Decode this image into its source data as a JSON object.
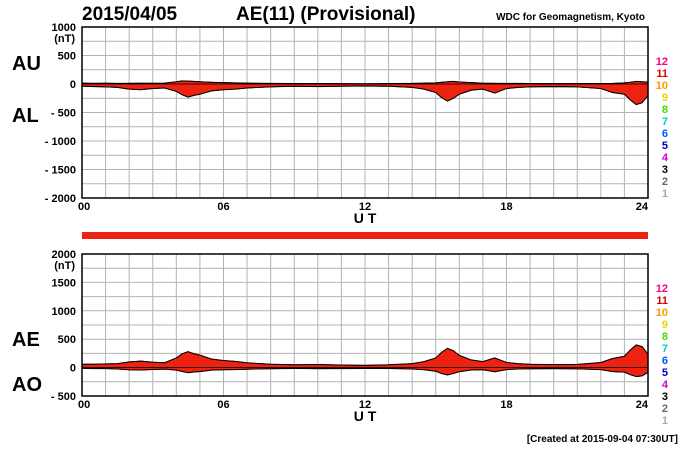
{
  "header": {
    "date": "2015/04/05",
    "title": "AE(11) (Provisional)",
    "source": "WDC for Geomagnetism, Kyoto"
  },
  "footer": {
    "created": "[Created at 2015-09-04 07:30UT]"
  },
  "colors": {
    "fill": "#ee2211",
    "grid": "#b4b4b4",
    "bar": "#ee2211",
    "station_colors": [
      "#ff0088",
      "#dd0000",
      "#ff9900",
      "#dddd00",
      "#44dd00",
      "#00cccc",
      "#0055ff",
      "#0000bb",
      "#cc00cc",
      "#000000",
      "#666666",
      "#aaaaaa"
    ]
  },
  "stations": [
    "12",
    "11",
    "10",
    "9",
    "8",
    "7",
    "6",
    "5",
    "4",
    "3",
    "2",
    "1"
  ],
  "chart_data": [
    {
      "type": "area",
      "panel": "AU/AL",
      "series": [
        {
          "name": "AU",
          "x": [
            0,
            0.5,
            1,
            1.5,
            2,
            2.5,
            3,
            3.5,
            4,
            4.25,
            4.5,
            4.75,
            5,
            5.25,
            5.5,
            6,
            6.5,
            7,
            8,
            9,
            10,
            11,
            12,
            13,
            14,
            14.5,
            15,
            15.25,
            15.5,
            15.75,
            16,
            16.5,
            17,
            17.5,
            18,
            18.5,
            19,
            20,
            21,
            22,
            22.5,
            23,
            23.25,
            23.5,
            23.75,
            24
          ],
          "y": [
            15,
            12,
            14,
            10,
            12,
            14,
            13,
            16,
            40,
            55,
            50,
            45,
            40,
            35,
            30,
            25,
            20,
            15,
            10,
            8,
            8,
            6,
            5,
            8,
            10,
            15,
            20,
            30,
            40,
            45,
            35,
            25,
            15,
            12,
            10,
            10,
            8,
            7,
            6,
            8,
            10,
            20,
            30,
            45,
            40,
            35
          ]
        },
        {
          "name": "AL",
          "x": [
            0,
            0.5,
            1,
            1.5,
            2,
            2.5,
            3,
            3.5,
            4,
            4.25,
            4.5,
            4.75,
            5,
            5.25,
            5.5,
            6,
            6.5,
            7,
            8,
            9,
            10,
            11,
            12,
            13,
            14,
            14.5,
            15,
            15.25,
            15.5,
            15.75,
            16,
            16.5,
            17,
            17.5,
            18,
            18.5,
            19,
            20,
            21,
            22,
            22.5,
            23,
            23.25,
            23.5,
            23.75,
            24
          ],
          "y": [
            -40,
            -45,
            -50,
            -60,
            -90,
            -100,
            -80,
            -70,
            -130,
            -190,
            -230,
            -200,
            -180,
            -150,
            -120,
            -100,
            -90,
            -70,
            -50,
            -40,
            -45,
            -40,
            -35,
            -40,
            -60,
            -90,
            -150,
            -240,
            -300,
            -250,
            -180,
            -110,
            -90,
            -160,
            -80,
            -60,
            -50,
            -45,
            -50,
            -80,
            -150,
            -180,
            -280,
            -360,
            -330,
            -200
          ]
        }
      ],
      "ylim": [
        -2000,
        1000
      ],
      "yticks": [
        1000,
        500,
        0,
        -500,
        -1000,
        -1500,
        -2000
      ],
      "ytick_labels": [
        "1000",
        "500",
        "0",
        "- 500",
        "- 1000",
        "- 1500",
        "- 2000"
      ],
      "xlim": [
        0,
        24
      ],
      "xticks": [
        0,
        6,
        12,
        18,
        24
      ],
      "xtick_labels": [
        "00",
        "06",
        "12",
        "18",
        "24"
      ],
      "xlabel": "U T",
      "unit": "(nT)",
      "upper_label": "AU",
      "lower_label": "AL",
      "grid": true
    },
    {
      "type": "area",
      "panel": "AE/AO",
      "series": [
        {
          "name": "AE",
          "x": [
            0,
            0.5,
            1,
            1.5,
            2,
            2.5,
            3,
            3.5,
            4,
            4.25,
            4.5,
            4.75,
            5,
            5.25,
            5.5,
            6,
            6.5,
            7,
            8,
            9,
            10,
            11,
            12,
            13,
            14,
            14.5,
            15,
            15.25,
            15.5,
            15.75,
            16,
            16.5,
            17,
            17.5,
            18,
            18.5,
            19,
            20,
            21,
            22,
            22.5,
            23,
            23.25,
            23.5,
            23.75,
            24
          ],
          "y": [
            60,
            60,
            65,
            70,
            100,
            115,
            95,
            85,
            170,
            245,
            280,
            245,
            220,
            185,
            150,
            125,
            110,
            85,
            60,
            50,
            55,
            45,
            40,
            50,
            70,
            105,
            170,
            270,
            340,
            295,
            215,
            135,
            105,
            170,
            90,
            70,
            58,
            52,
            56,
            90,
            160,
            200,
            310,
            400,
            370,
            235
          ]
        },
        {
          "name": "AO",
          "x": [
            0,
            0.5,
            1,
            1.5,
            2,
            2.5,
            3,
            3.5,
            4,
            4.25,
            4.5,
            4.75,
            5,
            5.25,
            5.5,
            6,
            6.5,
            7,
            8,
            9,
            10,
            11,
            12,
            13,
            14,
            14.5,
            15,
            15.25,
            15.5,
            15.75,
            16,
            16.5,
            17,
            17.5,
            18,
            18.5,
            19,
            20,
            21,
            22,
            22.5,
            23,
            23.25,
            23.5,
            23.75,
            24
          ],
          "y": [
            -13,
            -17,
            -18,
            -25,
            -39,
            -43,
            -34,
            -27,
            -45,
            -68,
            -90,
            -78,
            -70,
            -58,
            -45,
            -38,
            -35,
            -28,
            -20,
            -16,
            -19,
            -17,
            -15,
            -16,
            -25,
            -38,
            -65,
            -105,
            -130,
            -103,
            -73,
            -43,
            -38,
            -74,
            -35,
            -25,
            -21,
            -19,
            -22,
            -36,
            -70,
            -80,
            -125,
            -158,
            -145,
            -83
          ]
        }
      ],
      "ylim": [
        -500,
        2000
      ],
      "yticks": [
        2000,
        1500,
        1000,
        500,
        0,
        -500
      ],
      "ytick_labels": [
        "2000",
        "1500",
        "1000",
        "500",
        "0",
        "- 500"
      ],
      "xlim": [
        0,
        24
      ],
      "xticks": [
        0,
        6,
        12,
        18,
        24
      ],
      "xtick_labels": [
        "00",
        "06",
        "12",
        "18",
        "24"
      ],
      "xlabel": "U T",
      "unit": "(nT)",
      "upper_label": "AE",
      "lower_label": "AO",
      "grid": true
    }
  ]
}
